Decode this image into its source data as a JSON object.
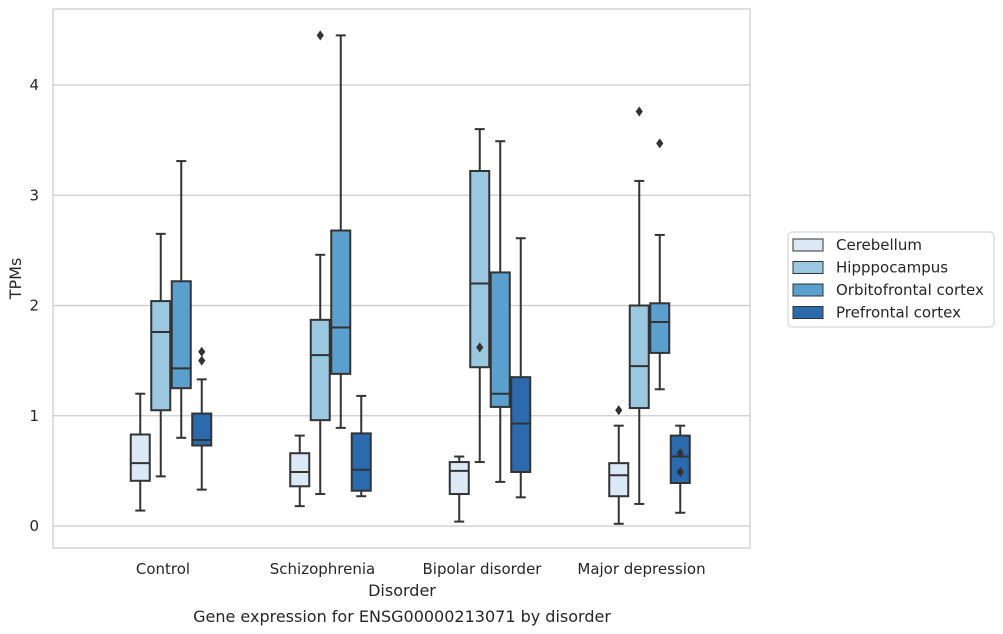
{
  "caption": "Gene expression for ENSG00000213071 by disorder",
  "chart_data": {
    "type": "box",
    "title": "",
    "xlabel": "Disorder",
    "ylabel": "TPMs",
    "ylim": [
      -0.2,
      4.7
    ],
    "yticks": [
      0,
      1,
      2,
      3,
      4
    ],
    "grid": "horizontal",
    "legend_position": "right",
    "categories": [
      "Control",
      "Schizophrenia",
      "Bipolar disorder",
      "Major depression"
    ],
    "series": [
      {
        "name": "Cerebellum",
        "color": "#dbe9f6",
        "boxes": [
          {
            "whislo": 0.14,
            "q1": 0.41,
            "med": 0.57,
            "q3": 0.83,
            "whishi": 1.2,
            "fliers": []
          },
          {
            "whislo": 0.18,
            "q1": 0.36,
            "med": 0.49,
            "q3": 0.66,
            "whishi": 0.82,
            "fliers": []
          },
          {
            "whislo": 0.04,
            "q1": 0.29,
            "med": 0.5,
            "q3": 0.58,
            "whishi": 0.63,
            "fliers": []
          },
          {
            "whislo": 0.02,
            "q1": 0.27,
            "med": 0.46,
            "q3": 0.57,
            "whishi": 0.91,
            "fliers": [
              1.05
            ]
          }
        ]
      },
      {
        "name": "Hipppocampus",
        "color": "#9ac8e0",
        "boxes": [
          {
            "whislo": 0.45,
            "q1": 1.05,
            "med": 1.76,
            "q3": 2.04,
            "whishi": 2.65,
            "fliers": []
          },
          {
            "whislo": 0.29,
            "q1": 0.96,
            "med": 1.55,
            "q3": 1.87,
            "whishi": 2.46,
            "fliers": [
              4.45
            ]
          },
          {
            "whislo": 0.58,
            "q1": 1.44,
            "med": 2.2,
            "q3": 3.22,
            "whishi": 3.6,
            "fliers": [
              1.62
            ]
          },
          {
            "whislo": 0.2,
            "q1": 1.07,
            "med": 1.45,
            "q3": 2.0,
            "whishi": 3.13,
            "fliers": [
              3.76
            ]
          }
        ]
      },
      {
        "name": "Orbitofrontal cortex",
        "color": "#5a9fcd",
        "boxes": [
          {
            "whislo": 0.8,
            "q1": 1.25,
            "med": 1.43,
            "q3": 2.22,
            "whishi": 3.31,
            "fliers": []
          },
          {
            "whislo": 0.89,
            "q1": 1.38,
            "med": 1.8,
            "q3": 2.68,
            "whishi": 4.45,
            "fliers": []
          },
          {
            "whislo": 0.4,
            "q1": 1.08,
            "med": 1.2,
            "q3": 2.3,
            "whishi": 3.49,
            "fliers": []
          },
          {
            "whislo": 1.24,
            "q1": 1.57,
            "med": 1.85,
            "q3": 2.02,
            "whishi": 2.64,
            "fliers": [
              3.47
            ]
          }
        ]
      },
      {
        "name": "Prefrontal cortex",
        "color": "#2a6aad",
        "boxes": [
          {
            "whislo": 0.33,
            "q1": 0.73,
            "med": 0.78,
            "q3": 1.02,
            "whishi": 1.33,
            "fliers": [
              1.5,
              1.58
            ]
          },
          {
            "whislo": 0.27,
            "q1": 0.32,
            "med": 0.51,
            "q3": 0.84,
            "whishi": 1.18,
            "fliers": []
          },
          {
            "whislo": 0.26,
            "q1": 0.49,
            "med": 0.93,
            "q3": 1.35,
            "whishi": 2.61,
            "fliers": []
          },
          {
            "whislo": 0.12,
            "q1": 0.39,
            "med": 0.63,
            "q3": 0.82,
            "whishi": 0.91,
            "fliers": [
              0.49,
              0.66
            ]
          }
        ]
      }
    ]
  }
}
